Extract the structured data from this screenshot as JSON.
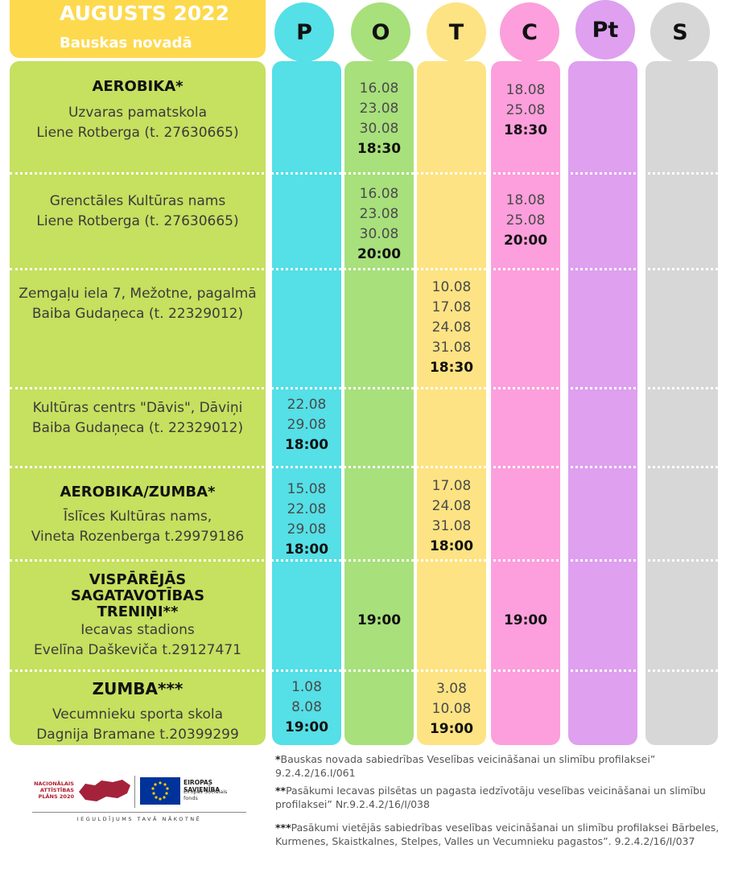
{
  "header": {
    "title": "AUGUSTS 2022",
    "subtitle": "Bauskas novadā"
  },
  "days": [
    "P",
    "O",
    "T",
    "C",
    "Pt",
    "S"
  ],
  "colors": {
    "header": "#fdd94e",
    "left": "#c6e05f",
    "P": "#55dfe6",
    "O": "#a8e07c",
    "T": "#fde383",
    "C": "#fc9fdc",
    "Pt": "#dea0ef",
    "S": "#d7d7d7"
  },
  "rows": [
    {
      "heading": "AEROBIKA*",
      "place": "Uzvaras pamatskola",
      "trainer": "Liene Rotberga (t. 27630665)",
      "O": {
        "dates": [
          "16.08",
          "23.08",
          "30.08"
        ],
        "time": "18:30"
      },
      "C": {
        "dates": [
          "18.08",
          "25.08"
        ],
        "time": "18:30"
      }
    },
    {
      "place": "Grenctāles Kultūras nams",
      "trainer": "Liene Rotberga (t. 27630665)",
      "O": {
        "dates": [
          "16.08",
          "23.08",
          "30.08"
        ],
        "time": "20:00"
      },
      "C": {
        "dates": [
          "18.08",
          "25.08"
        ],
        "time": "20:00"
      }
    },
    {
      "place": "Zemgaļu iela 7, Mežotne, pagalmā",
      "trainer": "Baiba Gudaņeca (t. 22329012)",
      "T": {
        "dates": [
          "10.08",
          "17.08",
          "24.08",
          "31.08"
        ],
        "time": "18:30"
      }
    },
    {
      "place": "Kultūras centrs \"Dāvis\", Dāviņi",
      "trainer": "Baiba Gudaņeca (t. 22329012)",
      "P": {
        "dates": [
          "22.08",
          "29.08"
        ],
        "time": "18:00"
      }
    },
    {
      "heading": "AEROBIKA/ZUMBA*",
      "place": "Īslīces Kultūras nams,",
      "trainer": "Vineta Rozenberga t.29979186",
      "P": {
        "dates": [
          "15.08",
          "22.08",
          "29.08"
        ],
        "time": "18:00"
      },
      "T": {
        "dates": [
          "17.08",
          "24.08",
          "31.08"
        ],
        "time": "18:00"
      }
    },
    {
      "heading": "VISPĀRĒJĀS SAGATAVOTĪBAS TRENIŅI**",
      "place": "Iecavas stadions",
      "trainer": "Evelīna Daškeviča t.29127471",
      "O": {
        "dates": [],
        "time": "19:00"
      },
      "C": {
        "dates": [],
        "time": "19:00"
      }
    },
    {
      "heading": "ZUMBA***",
      "place": "Vecumnieku sporta skola",
      "trainer": "Dagnija Bramane t.20399299",
      "P": {
        "dates": [
          "1.08",
          "8.08"
        ],
        "time": "19:00"
      },
      "T": {
        "dates": [
          "3.08",
          "10.08"
        ],
        "time": "19:00"
      }
    }
  ],
  "footnotes": [
    {
      "mark": "*",
      "text": "Bauskas novada sabiedrības Veselības veicināšanai un slimību profilaksei” 9.2.4.2/16.I/061"
    },
    {
      "mark": "**",
      "text": "Pasākumi Iecavas pilsētas un pagasta iedzīvotāju veselības veicināšanai un slimību profilaksei” Nr.9.2.4.2/16/I/038"
    },
    {
      "mark": "***",
      "text": "Pasākumi vietējās sabiedrības veselības veicināšanai un slimību profilaksei Bārbeles, Kurmenes, Skaistkalnes, Stelpes, Valles un Vecumnieku pagastos”. 9.2.4.2/16/I/037"
    }
  ],
  "logos": {
    "nap": "NACIONĀLAIS ATTĪSTĪBAS PLĀNS 2020",
    "eu_title": "EIROPAS SAVIENĪBA",
    "eu_fund": "Eiropas Sociālais fonds",
    "slogan": "IEGULDĪJUMS TAVĀ NĀKOTNĒ"
  }
}
